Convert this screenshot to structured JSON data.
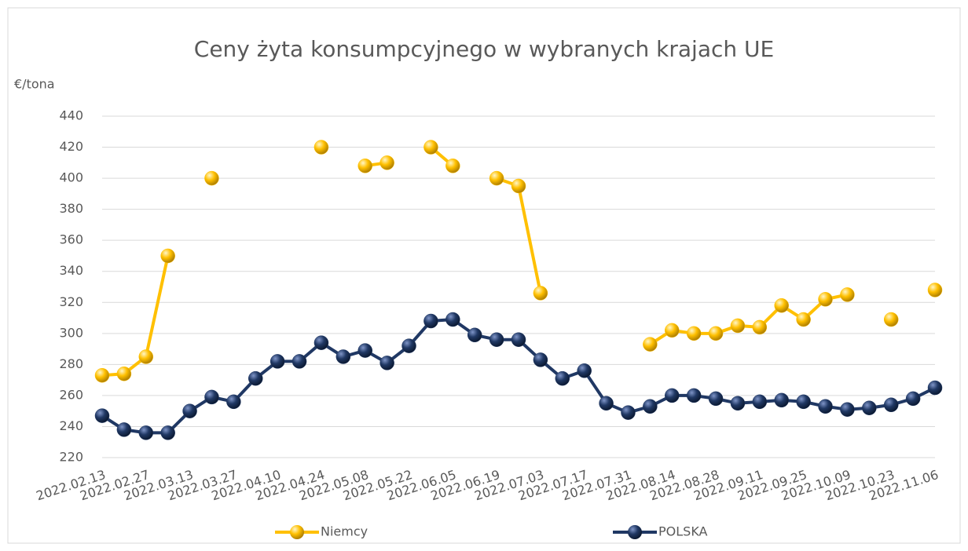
{
  "chart_data": {
    "type": "line",
    "title": "Ceny żyta konsumpcyjnego w wybranych krajach UE",
    "y_label": "€/tona",
    "categories": [
      "2022.02.13",
      null,
      "2022.02.27",
      null,
      "2022.03.13",
      null,
      "2022.03.27",
      null,
      "2022.04.10",
      null,
      "2022.04.24",
      null,
      "2022.05.08",
      null,
      "2022.05.22",
      null,
      "2022.06.05",
      null,
      "2022.06.19",
      null,
      "2022.07.03",
      null,
      "2022.07.17",
      null,
      "2022.07.31",
      null,
      "2022.08.14",
      null,
      "2022.08.28",
      null,
      "2022.09.11",
      null,
      "2022.09.25",
      null,
      "2022.10.09",
      null,
      "2022.10.23",
      null,
      "2022.11.06"
    ],
    "series": [
      {
        "name": "Niemcy",
        "color": "#ffc000",
        "values": [
          273,
          274,
          285,
          350,
          null,
          400,
          null,
          null,
          null,
          null,
          420,
          null,
          408,
          410,
          null,
          420,
          408,
          null,
          400,
          395,
          326,
          null,
          null,
          null,
          null,
          293,
          302,
          300,
          300,
          305,
          304,
          318,
          309,
          322,
          325,
          null,
          309,
          null,
          328
        ]
      },
      {
        "name": "POLSKA",
        "color": "#203864",
        "values": [
          247,
          238,
          236,
          236,
          250,
          259,
          256,
          271,
          282,
          282,
          294,
          285,
          289,
          281,
          292,
          308,
          309,
          299,
          296,
          296,
          283,
          271,
          276,
          255,
          249,
          253,
          260,
          260,
          258,
          255,
          256,
          257,
          256,
          253,
          251,
          252,
          254,
          258,
          265
        ]
      }
    ],
    "ylim": [
      220,
      440
    ],
    "yticks": [
      220,
      240,
      260,
      280,
      300,
      320,
      340,
      360,
      380,
      400,
      420,
      440
    ],
    "grid": true
  }
}
